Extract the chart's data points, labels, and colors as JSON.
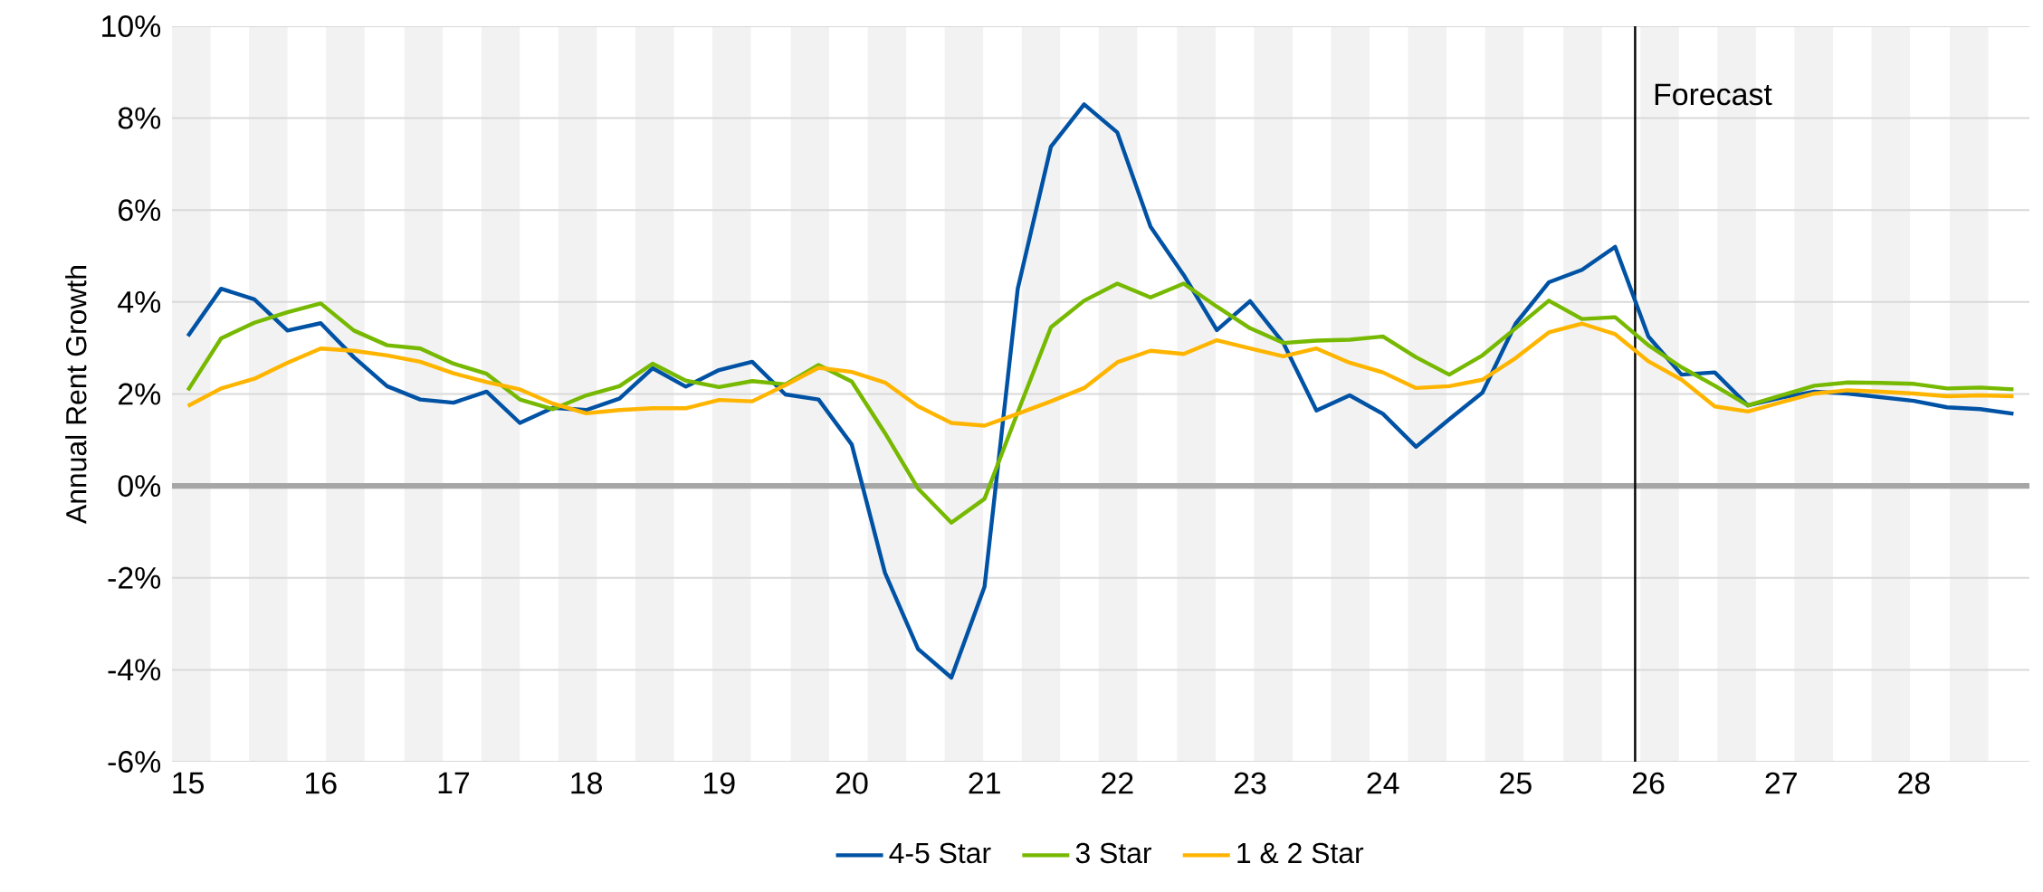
{
  "chart_data": {
    "type": "line",
    "ylabel": "Annual Rent Growth",
    "x": [
      15,
      15.25,
      15.5,
      15.75,
      16,
      16.25,
      16.5,
      16.75,
      17,
      17.25,
      17.5,
      17.75,
      18,
      18.25,
      18.5,
      18.75,
      19,
      19.25,
      19.5,
      19.75,
      20,
      20.25,
      20.5,
      20.75,
      21,
      21.25,
      21.5,
      21.75,
      22,
      22.25,
      22.5,
      22.75,
      23,
      23.25,
      23.5,
      23.75,
      24,
      24.25,
      24.5,
      24.75,
      25,
      25.25,
      25.5,
      25.75,
      26,
      26.25,
      26.5,
      26.75,
      27,
      27.25,
      27.5,
      27.75,
      28,
      28.25,
      28.5,
      28.75
    ],
    "series": [
      {
        "name": "4-5 Star",
        "color": "#0052a5",
        "values": [
          3.26,
          4.29,
          4.06,
          3.38,
          3.54,
          2.8,
          2.17,
          1.88,
          1.81,
          2.05,
          1.37,
          1.7,
          1.65,
          1.9,
          2.56,
          2.16,
          2.52,
          2.7,
          1.99,
          1.88,
          0.9,
          -1.89,
          -3.55,
          -4.17,
          -2.19,
          4.29,
          7.38,
          8.3,
          7.69,
          5.64,
          4.59,
          3.39,
          4.02,
          3.11,
          1.64,
          1.97,
          1.57,
          0.85,
          1.45,
          2.03,
          3.53,
          4.43,
          4.7,
          5.2,
          3.25,
          2.42,
          2.47,
          1.75,
          1.92,
          2.05,
          2.01,
          1.93,
          1.85,
          1.71,
          1.67,
          1.57
        ]
      },
      {
        "name": "3 Star",
        "color": "#76b900",
        "values": [
          2.08,
          3.21,
          3.55,
          3.78,
          3.97,
          3.38,
          3.06,
          2.99,
          2.66,
          2.44,
          1.88,
          1.67,
          1.97,
          2.17,
          2.66,
          2.29,
          2.15,
          2.28,
          2.21,
          2.63,
          2.27,
          1.15,
          -0.06,
          -0.8,
          -0.28,
          1.6,
          3.45,
          4.03,
          4.4,
          4.1,
          4.4,
          3.9,
          3.43,
          3.11,
          3.16,
          3.18,
          3.25,
          2.8,
          2.42,
          2.84,
          3.43,
          4.03,
          3.63,
          3.67,
          3.06,
          2.58,
          2.18,
          1.75,
          1.97,
          2.18,
          2.25,
          2.24,
          2.22,
          2.12,
          2.14,
          2.1
        ]
      },
      {
        "name": "1 & 2 Star",
        "color": "#ffb500",
        "values": [
          1.74,
          2.12,
          2.33,
          2.68,
          2.99,
          2.94,
          2.84,
          2.7,
          2.45,
          2.26,
          2.1,
          1.79,
          1.58,
          1.65,
          1.69,
          1.69,
          1.87,
          1.84,
          2.19,
          2.57,
          2.48,
          2.25,
          1.73,
          1.37,
          1.31,
          1.57,
          1.84,
          2.13,
          2.69,
          2.94,
          2.87,
          3.17,
          2.99,
          2.82,
          2.99,
          2.68,
          2.47,
          2.13,
          2.17,
          2.31,
          2.78,
          3.34,
          3.53,
          3.3,
          2.71,
          2.31,
          1.73,
          1.62,
          1.82,
          2.01,
          2.08,
          2.05,
          2.01,
          1.95,
          1.97,
          1.95
        ]
      }
    ],
    "xlim": [
      14.88,
      28.87
    ],
    "xticks": [
      15,
      16,
      17,
      18,
      19,
      20,
      21,
      22,
      23,
      24,
      25,
      26,
      27,
      28
    ],
    "ylim": [
      -6,
      10
    ],
    "yticks": [
      {
        "value": -6,
        "label": "-6%"
      },
      {
        "value": -4,
        "label": "-4%"
      },
      {
        "value": -2,
        "label": "-2%"
      },
      {
        "value": 0,
        "label": "0%"
      },
      {
        "value": 2,
        "label": "2%"
      },
      {
        "value": 4,
        "label": "4%"
      },
      {
        "value": 6,
        "label": "6%"
      },
      {
        "value": 8,
        "label": "8%"
      },
      {
        "value": 10,
        "label": "10%"
      }
    ],
    "grid": "y",
    "legend": "bottom",
    "marker": "none",
    "line_style": "solid",
    "ref_lines": [
      {
        "axis": "y",
        "value": 0,
        "color": "#a6a6a6"
      },
      {
        "axis": "x",
        "value": 25.9,
        "label": "Forecast",
        "color": "#000000"
      }
    ],
    "bands": [
      {
        "axis": "x",
        "from": 14.88,
        "to": 15.17,
        "color": "#f2f2f2"
      },
      {
        "axis": "x",
        "from": 15.46,
        "to": 15.75,
        "color": "#f2f2f2"
      },
      {
        "axis": "x",
        "from": 16.04,
        "to": 16.33,
        "color": "#f2f2f2"
      },
      {
        "axis": "x",
        "from": 16.63,
        "to": 16.92,
        "color": "#f2f2f2"
      },
      {
        "axis": "x",
        "from": 17.21,
        "to": 17.5,
        "color": "#f2f2f2"
      },
      {
        "axis": "x",
        "from": 17.79,
        "to": 18.08,
        "color": "#f2f2f2"
      },
      {
        "axis": "x",
        "from": 18.37,
        "to": 18.66,
        "color": "#f2f2f2"
      },
      {
        "axis": "x",
        "from": 18.95,
        "to": 19.24,
        "color": "#f2f2f2"
      },
      {
        "axis": "x",
        "from": 19.54,
        "to": 19.83,
        "color": "#f2f2f2"
      },
      {
        "axis": "x",
        "from": 20.12,
        "to": 20.41,
        "color": "#f2f2f2"
      },
      {
        "axis": "x",
        "from": 20.7,
        "to": 20.99,
        "color": "#f2f2f2"
      },
      {
        "axis": "x",
        "from": 21.28,
        "to": 21.57,
        "color": "#f2f2f2"
      },
      {
        "axis": "x",
        "from": 21.86,
        "to": 22.15,
        "color": "#f2f2f2"
      },
      {
        "axis": "x",
        "from": 22.45,
        "to": 22.74,
        "color": "#f2f2f2"
      },
      {
        "axis": "x",
        "from": 23.03,
        "to": 23.32,
        "color": "#f2f2f2"
      },
      {
        "axis": "x",
        "from": 23.61,
        "to": 23.9,
        "color": "#f2f2f2"
      },
      {
        "axis": "x",
        "from": 24.19,
        "to": 24.48,
        "color": "#f2f2f2"
      },
      {
        "axis": "x",
        "from": 24.77,
        "to": 25.06,
        "color": "#f2f2f2"
      },
      {
        "axis": "x",
        "from": 25.36,
        "to": 25.65,
        "color": "#f2f2f2"
      },
      {
        "axis": "x",
        "from": 25.94,
        "to": 26.23,
        "color": "#f2f2f2"
      },
      {
        "axis": "x",
        "from": 26.52,
        "to": 26.81,
        "color": "#f2f2f2"
      },
      {
        "axis": "x",
        "from": 27.1,
        "to": 27.39,
        "color": "#f2f2f2"
      },
      {
        "axis": "x",
        "from": 27.68,
        "to": 27.97,
        "color": "#f2f2f2"
      },
      {
        "axis": "x",
        "from": 28.27,
        "to": 28.56,
        "color": "#f2f2f2"
      }
    ]
  }
}
